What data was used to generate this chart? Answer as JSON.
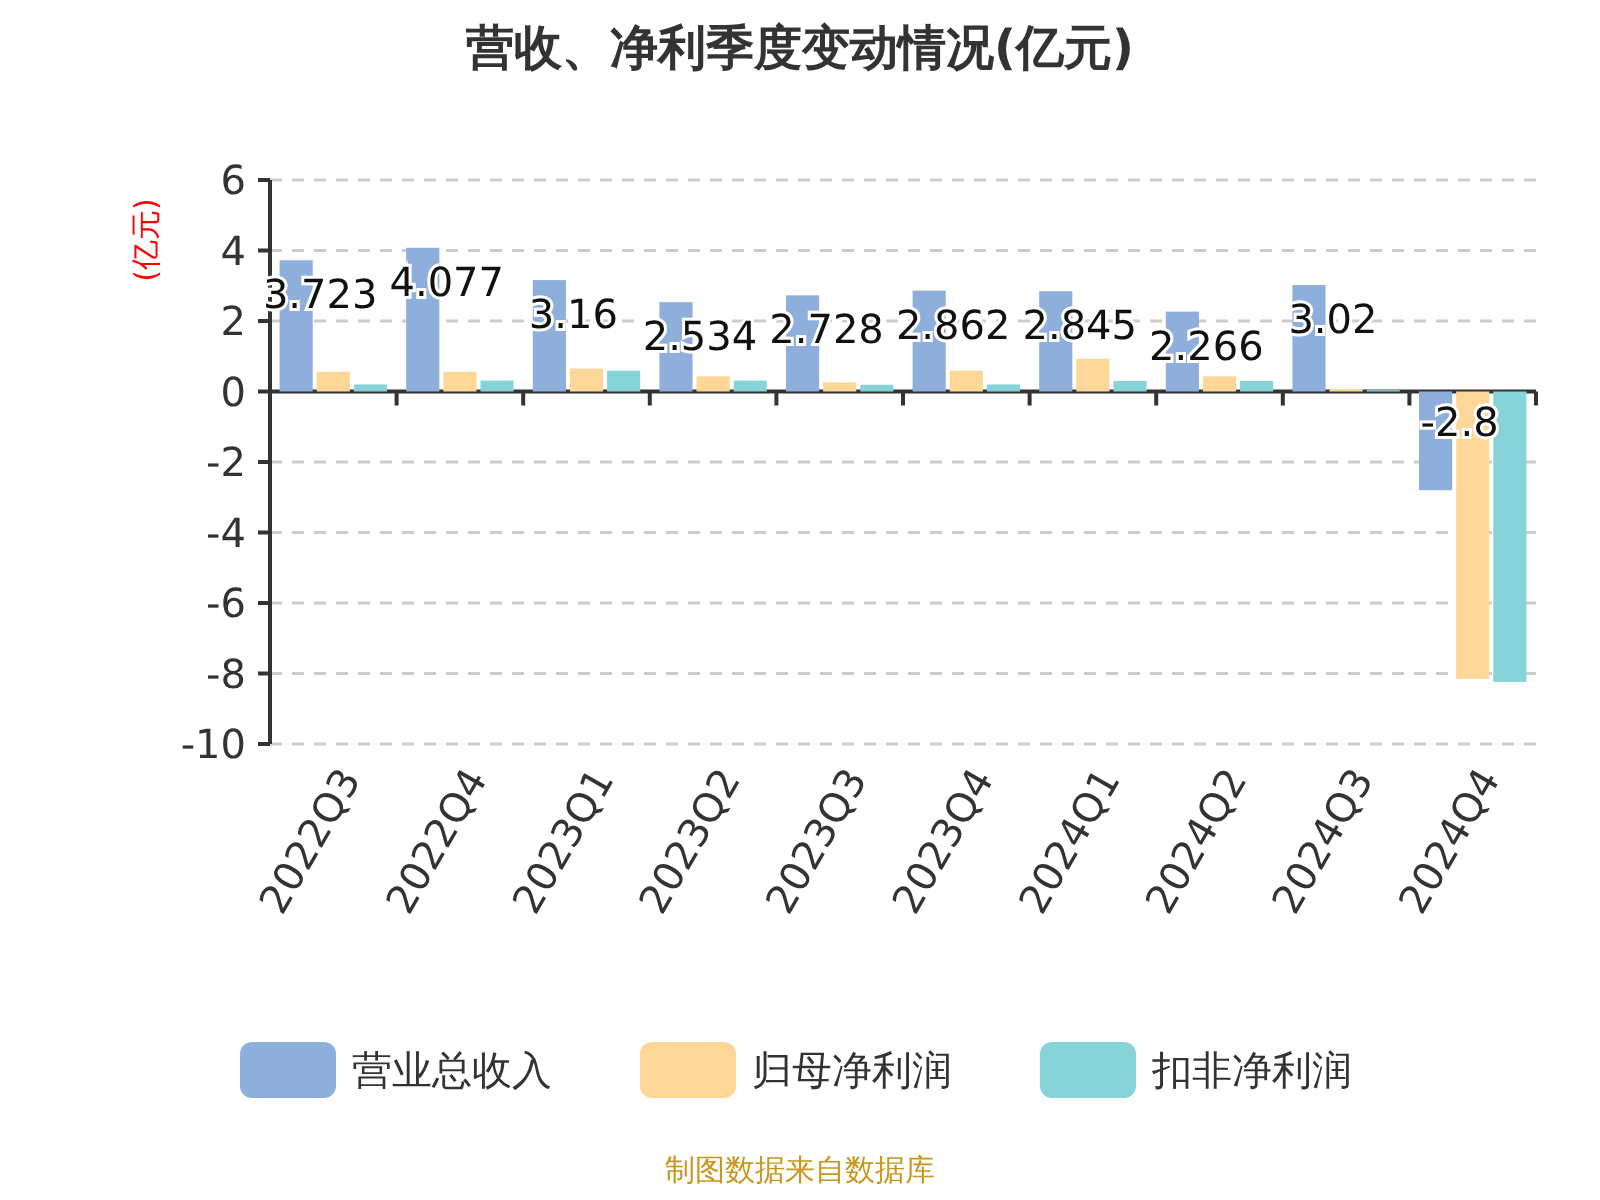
{
  "chart_data": {
    "type": "bar",
    "title": "营收、净利季度变动情况(亿元)",
    "ylabel": "(亿元)",
    "categories": [
      "2022Q3",
      "2022Q4",
      "2023Q1",
      "2023Q2",
      "2023Q3",
      "2023Q4",
      "2024Q1",
      "2024Q2",
      "2024Q3",
      "2024Q4"
    ],
    "series": [
      {
        "name": "营业总收入",
        "color": "#8eaedb",
        "values": [
          3.723,
          4.077,
          3.16,
          2.534,
          2.728,
          2.862,
          2.845,
          2.266,
          3.02,
          -2.8
        ],
        "value_labels": [
          "3.723",
          "4.077",
          "3.16",
          "2.534",
          "2.728",
          "2.862",
          "2.845",
          "2.266",
          "3.02",
          "-2.8"
        ]
      },
      {
        "name": "归母净利润",
        "color": "#fdd797",
        "values": [
          0.56,
          0.56,
          0.65,
          0.43,
          0.26,
          0.59,
          0.93,
          0.43,
          0.07,
          -8.15
        ]
      },
      {
        "name": "扣非净利润",
        "color": "#86d4d8",
        "values": [
          0.2,
          0.31,
          0.59,
          0.31,
          0.19,
          0.2,
          0.3,
          0.3,
          0.04,
          -8.24
        ]
      }
    ],
    "ylim": [
      -10,
      6
    ],
    "yticks": [
      -10,
      -8,
      -6,
      -4,
      -2,
      0,
      2,
      4,
      6
    ],
    "grid": "y",
    "legend": "bottom",
    "annotations": [
      "制图数据来自数据库"
    ]
  }
}
